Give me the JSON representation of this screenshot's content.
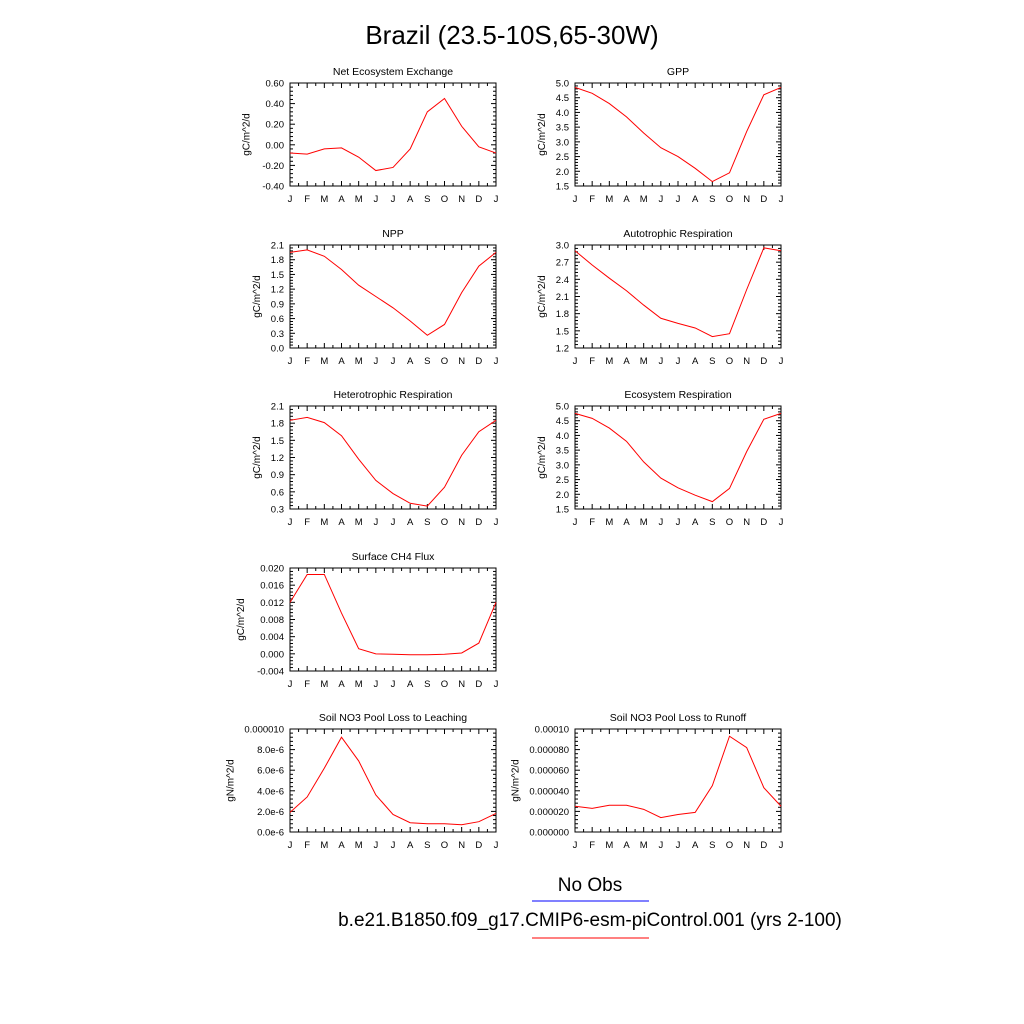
{
  "figure_title": "Brazil (23.5-10S,65-30W)",
  "colors": {
    "model": "#ff0000",
    "obs": "#0000ff"
  },
  "legend": {
    "obs_label": "No Obs",
    "model_label": "b.e21.B1850.f09_g17.CMIP6-esm-piControl.001 (yrs 2-100)"
  },
  "chart_data": [
    {
      "type": "line",
      "title": "Net Ecosystem Exchange",
      "ylabel": "gC/m^2/d",
      "categories": [
        "J",
        "F",
        "M",
        "A",
        "M",
        "J",
        "J",
        "A",
        "S",
        "O",
        "N",
        "D",
        "J"
      ],
      "ylim": [
        -0.4,
        0.6
      ],
      "yticks": [
        "-0.40",
        "-0.20",
        "0.00",
        "0.20",
        "0.40",
        "0.60"
      ],
      "series": [
        {
          "values": [
            -0.08,
            -0.09,
            -0.04,
            -0.03,
            -0.12,
            -0.25,
            -0.22,
            -0.04,
            0.32,
            0.45,
            0.18,
            -0.02,
            -0.08
          ]
        }
      ]
    },
    {
      "type": "line",
      "title": "GPP",
      "ylabel": "gC/m^2/d",
      "categories": [
        "J",
        "F",
        "M",
        "A",
        "M",
        "J",
        "J",
        "A",
        "S",
        "O",
        "N",
        "D",
        "J"
      ],
      "ylim": [
        1.5,
        5.0
      ],
      "yticks": [
        "1.5",
        "2.0",
        "2.5",
        "3.0",
        "3.5",
        "4.0",
        "4.5",
        "5.0"
      ],
      "series": [
        {
          "values": [
            4.85,
            4.65,
            4.3,
            3.85,
            3.3,
            2.8,
            2.5,
            2.1,
            1.65,
            1.95,
            3.35,
            4.6,
            4.85
          ]
        }
      ]
    },
    {
      "type": "line",
      "title": "NPP",
      "ylabel": "gC/m^2/d",
      "categories": [
        "J",
        "F",
        "M",
        "A",
        "M",
        "J",
        "J",
        "A",
        "S",
        "O",
        "N",
        "D",
        "J"
      ],
      "ylim": [
        0.0,
        2.1
      ],
      "yticks": [
        "0.0",
        "0.3",
        "0.6",
        "0.9",
        "1.2",
        "1.5",
        "1.8",
        "2.1"
      ],
      "series": [
        {
          "values": [
            1.95,
            2.0,
            1.87,
            1.6,
            1.28,
            1.05,
            0.82,
            0.55,
            0.26,
            0.48,
            1.13,
            1.67,
            1.95
          ]
        }
      ]
    },
    {
      "type": "line",
      "title": "Autotrophic Respiration",
      "ylabel": "gC/m^2/d",
      "categories": [
        "J",
        "F",
        "M",
        "A",
        "M",
        "J",
        "J",
        "A",
        "S",
        "O",
        "N",
        "D",
        "J"
      ],
      "ylim": [
        1.2,
        3.0
      ],
      "yticks": [
        "1.2",
        "1.5",
        "1.8",
        "2.1",
        "2.4",
        "2.7",
        "3.0"
      ],
      "series": [
        {
          "values": [
            2.9,
            2.65,
            2.42,
            2.2,
            1.95,
            1.72,
            1.63,
            1.55,
            1.4,
            1.45,
            2.22,
            2.95,
            2.9
          ]
        }
      ]
    },
    {
      "type": "line",
      "title": "Heterotrophic Respiration",
      "ylabel": "gC/m^2/d",
      "categories": [
        "J",
        "F",
        "M",
        "A",
        "M",
        "J",
        "J",
        "A",
        "S",
        "O",
        "N",
        "D",
        "J"
      ],
      "ylim": [
        0.3,
        2.1
      ],
      "yticks": [
        "0.3",
        "0.6",
        "0.9",
        "1.2",
        "1.5",
        "1.8",
        "2.1"
      ],
      "series": [
        {
          "values": [
            1.85,
            1.9,
            1.81,
            1.58,
            1.17,
            0.8,
            0.57,
            0.4,
            0.35,
            0.68,
            1.24,
            1.65,
            1.85
          ]
        }
      ]
    },
    {
      "type": "line",
      "title": "Ecosystem Respiration",
      "ylabel": "gC/m^2/d",
      "categories": [
        "J",
        "F",
        "M",
        "A",
        "M",
        "J",
        "J",
        "A",
        "S",
        "O",
        "N",
        "D",
        "J"
      ],
      "ylim": [
        1.5,
        5.0
      ],
      "yticks": [
        "1.5",
        "2.0",
        "2.5",
        "3.0",
        "3.5",
        "4.0",
        "4.5",
        "5.0"
      ],
      "series": [
        {
          "values": [
            4.75,
            4.58,
            4.25,
            3.8,
            3.1,
            2.55,
            2.22,
            1.97,
            1.75,
            2.2,
            3.45,
            4.55,
            4.75
          ]
        }
      ]
    },
    {
      "type": "line",
      "title": "Surface CH4 Flux",
      "ylabel": "gC/m^2/d",
      "categories": [
        "J",
        "F",
        "M",
        "A",
        "M",
        "J",
        "J",
        "A",
        "S",
        "O",
        "N",
        "D",
        "J"
      ],
      "ylim": [
        -0.004,
        0.02
      ],
      "yticks": [
        "-0.004",
        "0.000",
        "0.004",
        "0.008",
        "0.012",
        "0.016",
        "0.020"
      ],
      "series": [
        {
          "values": [
            0.012,
            0.0185,
            0.0185,
            0.0095,
            0.0012,
            0.0,
            -0.0001,
            -0.0002,
            -0.0002,
            -0.0001,
            0.0002,
            0.0025,
            0.012
          ]
        }
      ]
    },
    {
      "type": "line",
      "title": "Soil NO3 Pool Loss to Leaching",
      "ylabel": "gN/m^2/d",
      "categories": [
        "J",
        "F",
        "M",
        "A",
        "M",
        "J",
        "J",
        "A",
        "S",
        "O",
        "N",
        "D",
        "J"
      ],
      "ylim": [
        0.0,
        1e-05
      ],
      "yticks": [
        "0.0e-6",
        "2.0e-6",
        "4.0e-6",
        "6.0e-6",
        "8.0e-6",
        "0.000010"
      ],
      "series": [
        {
          "values": [
            1.9e-06,
            3.4e-06,
            6.2e-06,
            9.2e-06,
            6.9e-06,
            3.6e-06,
            1.7e-06,
            9e-07,
            8e-07,
            8e-07,
            7e-07,
            1e-06,
            1.8e-06
          ]
        }
      ]
    },
    {
      "type": "line",
      "title": "Soil NO3 Pool Loss to Runoff",
      "ylabel": "gN/m^2/d",
      "categories": [
        "J",
        "F",
        "M",
        "A",
        "M",
        "J",
        "J",
        "A",
        "S",
        "O",
        "N",
        "D",
        "J"
      ],
      "ylim": [
        0.0,
        0.0001
      ],
      "yticks": [
        "0.000000",
        "0.000020",
        "0.000040",
        "0.000060",
        "0.000080",
        "0.00010"
      ],
      "series": [
        {
          "values": [
            2.5e-05,
            2.3e-05,
            2.6e-05,
            2.6e-05,
            2.2e-05,
            1.4e-05,
            1.7e-05,
            1.9e-05,
            4.5e-05,
            9.3e-05,
            8.2e-05,
            4.3e-05,
            2.5e-05
          ]
        }
      ]
    }
  ]
}
